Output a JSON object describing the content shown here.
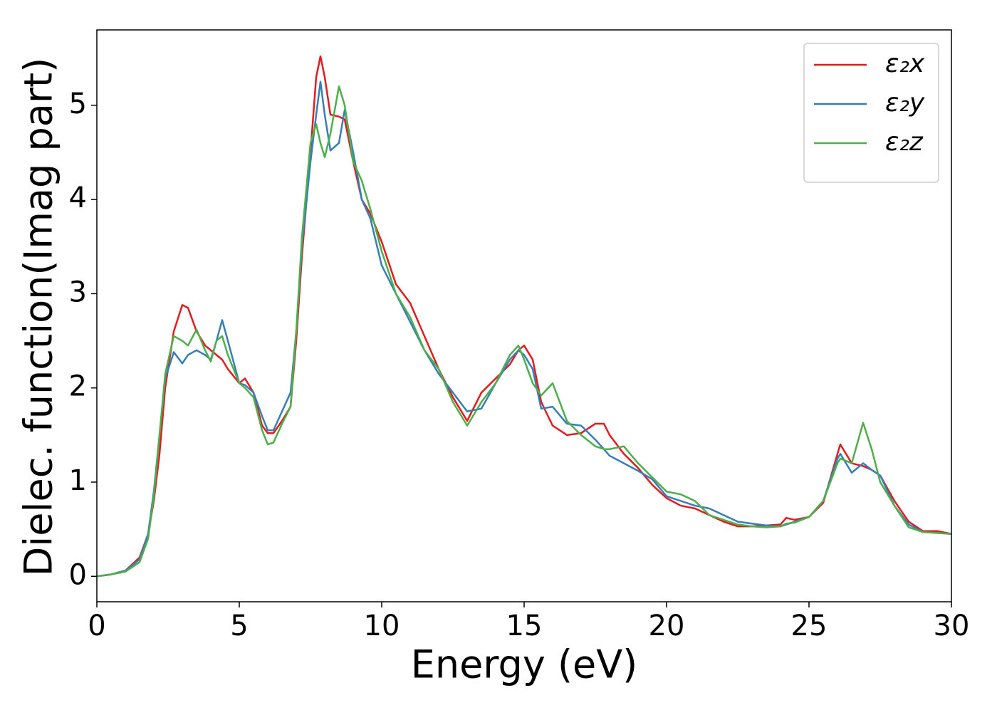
{
  "chart_data": {
    "type": "line",
    "xlabel": "Energy (eV)",
    "ylabel": "Dielec. function(Imag part)",
    "x": [
      0,
      0.5,
      1,
      1.5,
      1.8,
      2,
      2.2,
      2.4,
      2.7,
      3,
      3.2,
      3.5,
      3.8,
      4,
      4.2,
      4.4,
      4.6,
      5,
      5.2,
      5.5,
      5.8,
      6,
      6.2,
      6.5,
      6.8,
      7,
      7.2,
      7.5,
      7.7,
      7.85,
      8,
      8.2,
      8.5,
      8.7,
      9,
      9.3,
      9.6,
      10,
      10.5,
      11,
      11.5,
      12,
      12.5,
      13,
      13.5,
      14,
      14.5,
      14.8,
      15,
      15.3,
      15.6,
      16,
      16.5,
      17,
      17.5,
      17.8,
      18,
      18.5,
      19,
      19.5,
      20,
      20.5,
      21,
      21.5,
      22,
      22.5,
      23,
      23.5,
      24,
      24.2,
      24.5,
      25,
      25.5,
      26,
      26.1,
      26.5,
      26.9,
      27.2,
      27.5,
      28,
      28.5,
      29,
      29.5,
      30
    ],
    "series": [
      {
        "name": "ε₂x",
        "color": "#e41a1c",
        "values": [
          0,
          0.02,
          0.06,
          0.2,
          0.45,
          0.8,
          1.3,
          2.0,
          2.6,
          2.88,
          2.85,
          2.6,
          2.45,
          2.4,
          2.35,
          2.3,
          2.2,
          2.05,
          2.1,
          1.95,
          1.6,
          1.52,
          1.52,
          1.65,
          1.8,
          2.5,
          3.4,
          4.5,
          5.3,
          5.52,
          5.3,
          4.9,
          4.88,
          4.85,
          4.4,
          4.0,
          3.85,
          3.55,
          3.1,
          2.9,
          2.55,
          2.2,
          1.9,
          1.65,
          1.95,
          2.1,
          2.25,
          2.4,
          2.45,
          2.3,
          1.85,
          1.6,
          1.5,
          1.52,
          1.62,
          1.62,
          1.5,
          1.3,
          1.15,
          0.97,
          0.83,
          0.75,
          0.72,
          0.65,
          0.58,
          0.53,
          0.53,
          0.54,
          0.55,
          0.62,
          0.6,
          0.63,
          0.78,
          1.3,
          1.4,
          1.2,
          1.17,
          1.13,
          1.07,
          0.8,
          0.58,
          0.48,
          0.48,
          0.45
        ]
      },
      {
        "name": "ε₂y",
        "color": "#377eb8",
        "values": [
          0,
          0.02,
          0.06,
          0.18,
          0.45,
          0.9,
          1.5,
          2.1,
          2.38,
          2.26,
          2.35,
          2.4,
          2.35,
          2.3,
          2.5,
          2.72,
          2.5,
          2.05,
          2.03,
          1.95,
          1.7,
          1.55,
          1.55,
          1.75,
          1.95,
          2.6,
          3.5,
          4.4,
          4.9,
          5.25,
          4.9,
          4.52,
          4.6,
          4.95,
          4.5,
          4.0,
          3.8,
          3.3,
          3.0,
          2.7,
          2.4,
          2.15,
          1.95,
          1.75,
          1.78,
          2.05,
          2.3,
          2.4,
          2.35,
          2.2,
          1.78,
          1.8,
          1.62,
          1.6,
          1.45,
          1.35,
          1.28,
          1.2,
          1.12,
          1.03,
          0.85,
          0.8,
          0.75,
          0.72,
          0.65,
          0.58,
          0.56,
          0.54,
          0.53,
          0.55,
          0.58,
          0.63,
          0.8,
          1.25,
          1.3,
          1.1,
          1.2,
          1.13,
          1.07,
          0.75,
          0.55,
          0.47,
          0.46,
          0.45
        ]
      },
      {
        "name": "ε₂z",
        "color": "#4daf4a",
        "values": [
          0,
          0.02,
          0.05,
          0.15,
          0.4,
          0.85,
          1.5,
          2.15,
          2.55,
          2.5,
          2.45,
          2.62,
          2.4,
          2.28,
          2.5,
          2.55,
          2.35,
          2.05,
          2.0,
          1.9,
          1.55,
          1.4,
          1.42,
          1.62,
          1.8,
          2.6,
          3.6,
          4.6,
          4.8,
          4.6,
          4.45,
          4.7,
          5.2,
          5.0,
          4.4,
          4.2,
          3.9,
          3.45,
          3.0,
          2.75,
          2.4,
          2.2,
          1.85,
          1.6,
          1.85,
          2.05,
          2.35,
          2.45,
          2.3,
          2.05,
          1.92,
          2.05,
          1.65,
          1.5,
          1.38,
          1.35,
          1.35,
          1.38,
          1.2,
          1.05,
          0.9,
          0.87,
          0.8,
          0.65,
          0.6,
          0.55,
          0.53,
          0.52,
          0.53,
          0.56,
          0.57,
          0.63,
          0.8,
          1.2,
          1.25,
          1.2,
          1.63,
          1.35,
          1.0,
          0.75,
          0.52,
          0.47,
          0.46,
          0.45
        ]
      }
    ],
    "xlim": [
      0,
      30
    ],
    "xticks": [
      0,
      5,
      10,
      15,
      20,
      25,
      30
    ],
    "ylim": [
      -0.27,
      5.8
    ],
    "yticks": [
      0,
      1,
      2,
      3,
      4,
      5
    ],
    "grid": false,
    "legend": "upper right"
  }
}
